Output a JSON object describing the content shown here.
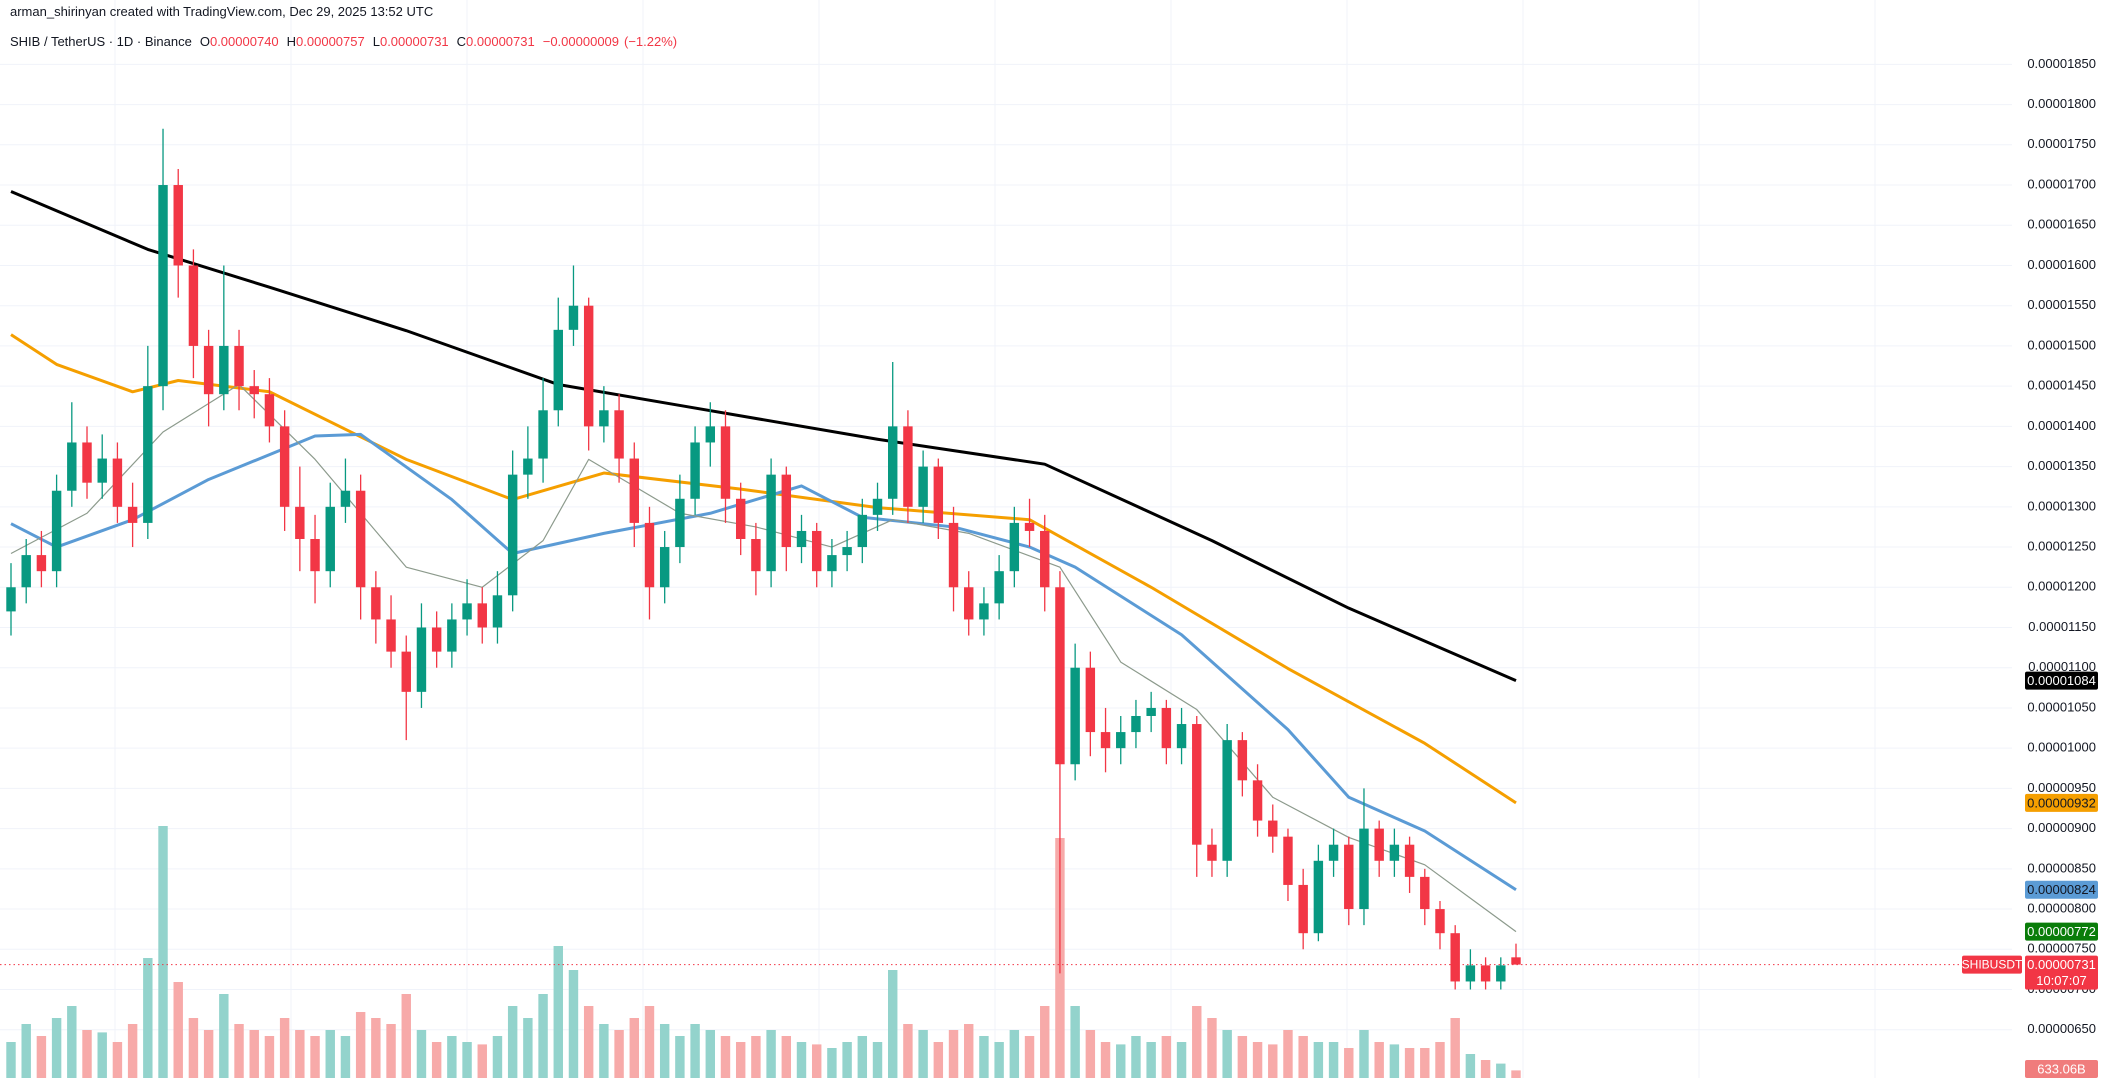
{
  "chart_data": {
    "type": "candlestick",
    "author": "arman_shirinyan created with TradingView.com, Dec 29, 2025 13:52 UTC",
    "symbol": "SHIB / TetherUS · 1D · Binance",
    "legend": [
      {
        "key": "O",
        "value": 7.4e-06,
        "label": "0.00000740"
      },
      {
        "key": "H",
        "value": 7.57e-06,
        "label": "0.00000757"
      },
      {
        "key": "L",
        "value": 7.31e-06,
        "label": "0.00000731"
      },
      {
        "key": "C",
        "value": 7.31e-06,
        "label": "0.00000731"
      }
    ],
    "change": [
      {
        "value": -9e-08,
        "label": "−0.00000009"
      },
      {
        "value": -1.22,
        "label": "(−1.22%)"
      }
    ],
    "up_color": "#089981",
    "down_color": "#f23645",
    "up_volume_color": "#93d3cc",
    "down_volume_color": "#f7aaa9",
    "open": [
      1.17e-05,
      1.2e-05,
      1.24e-05,
      1.22e-05,
      1.32e-05,
      1.38e-05,
      1.33e-05,
      1.36e-05,
      1.3e-05,
      1.28e-05,
      1.45e-05,
      1.7e-05,
      1.6e-05,
      1.5e-05,
      1.44e-05,
      1.5e-05,
      1.45e-05,
      1.44e-05,
      1.4e-05,
      1.3e-05,
      1.26e-05,
      1.22e-05,
      1.3e-05,
      1.32e-05,
      1.2e-05,
      1.16e-05,
      1.12e-05,
      1.07e-05,
      1.15e-05,
      1.12e-05,
      1.16e-05,
      1.18e-05,
      1.15e-05,
      1.19e-05,
      1.34e-05,
      1.36e-05,
      1.42e-05,
      1.52e-05,
      1.55e-05,
      1.4e-05,
      1.42e-05,
      1.36e-05,
      1.28e-05,
      1.2e-05,
      1.25e-05,
      1.31e-05,
      1.38e-05,
      1.4e-05,
      1.31e-05,
      1.26e-05,
      1.22e-05,
      1.34e-05,
      1.25e-05,
      1.27e-05,
      1.22e-05,
      1.24e-05,
      1.25e-05,
      1.29e-05,
      1.31e-05,
      1.4e-05,
      1.3e-05,
      1.35e-05,
      1.28e-05,
      1.2e-05,
      1.16e-05,
      1.18e-05,
      1.22e-05,
      1.28e-05,
      1.27e-05,
      1.2e-05,
      9.8e-06,
      1.1e-05,
      1.02e-05,
      1e-05,
      1.02e-05,
      1.04e-05,
      1.05e-05,
      1e-05,
      1.03e-05,
      8.8e-06,
      8.6e-06,
      1.01e-05,
      9.6e-06,
      9.1e-06,
      8.9e-06,
      8.3e-06,
      7.7e-06,
      8.6e-06,
      8.8e-06,
      8e-06,
      9e-06,
      8.6e-06,
      8.8e-06,
      8.4e-06,
      8e-06,
      7.7e-06,
      7.1e-06,
      7.3e-06,
      7.1e-06,
      7.4e-06
    ],
    "high": [
      1.23e-05,
      1.26e-05,
      1.27e-05,
      1.34e-05,
      1.43e-05,
      1.4e-05,
      1.39e-05,
      1.38e-05,
      1.33e-05,
      1.5e-05,
      1.77e-05,
      1.72e-05,
      1.62e-05,
      1.52e-05,
      1.6e-05,
      1.52e-05,
      1.47e-05,
      1.46e-05,
      1.42e-05,
      1.35e-05,
      1.29e-05,
      1.33e-05,
      1.36e-05,
      1.34e-05,
      1.22e-05,
      1.19e-05,
      1.14e-05,
      1.18e-05,
      1.17e-05,
      1.18e-05,
      1.21e-05,
      1.2e-05,
      1.22e-05,
      1.37e-05,
      1.4e-05,
      1.46e-05,
      1.56e-05,
      1.6e-05,
      1.56e-05,
      1.45e-05,
      1.44e-05,
      1.38e-05,
      1.3e-05,
      1.27e-05,
      1.34e-05,
      1.4e-05,
      1.43e-05,
      1.42e-05,
      1.33e-05,
      1.28e-05,
      1.36e-05,
      1.35e-05,
      1.29e-05,
      1.28e-05,
      1.26e-05,
      1.27e-05,
      1.31e-05,
      1.33e-05,
      1.48e-05,
      1.42e-05,
      1.37e-05,
      1.36e-05,
      1.3e-05,
      1.22e-05,
      1.2e-05,
      1.24e-05,
      1.3e-05,
      1.31e-05,
      1.29e-05,
      1.22e-05,
      1.13e-05,
      1.12e-05,
      1.05e-05,
      1.04e-05,
      1.06e-05,
      1.07e-05,
      1.06e-05,
      1.05e-05,
      1.04e-05,
      9e-06,
      1.03e-05,
      1.02e-05,
      9.8e-06,
      9.3e-06,
      9e-06,
      8.5e-06,
      8.8e-06,
      9e-06,
      8.9e-06,
      9.5e-06,
      9.1e-06,
      9e-06,
      8.9e-06,
      8.5e-06,
      8.1e-06,
      7.8e-06,
      7.5e-06,
      7.4e-06,
      7.4e-06,
      7.57e-06
    ],
    "low": [
      1.14e-05,
      1.18e-05,
      1.2e-05,
      1.2e-05,
      1.3e-05,
      1.31e-05,
      1.31e-05,
      1.28e-05,
      1.25e-05,
      1.26e-05,
      1.42e-05,
      1.56e-05,
      1.46e-05,
      1.4e-05,
      1.42e-05,
      1.42e-05,
      1.41e-05,
      1.38e-05,
      1.27e-05,
      1.22e-05,
      1.18e-05,
      1.2e-05,
      1.28e-05,
      1.16e-05,
      1.13e-05,
      1.1e-05,
      1.01e-05,
      1.05e-05,
      1.1e-05,
      1.1e-05,
      1.14e-05,
      1.13e-05,
      1.13e-05,
      1.17e-05,
      1.31e-05,
      1.33e-05,
      1.4e-05,
      1.5e-05,
      1.37e-05,
      1.38e-05,
      1.33e-05,
      1.25e-05,
      1.16e-05,
      1.18e-05,
      1.23e-05,
      1.29e-05,
      1.35e-05,
      1.28e-05,
      1.24e-05,
      1.19e-05,
      1.2e-05,
      1.22e-05,
      1.23e-05,
      1.2e-05,
      1.2e-05,
      1.22e-05,
      1.23e-05,
      1.27e-05,
      1.29e-05,
      1.28e-05,
      1.28e-05,
      1.26e-05,
      1.17e-05,
      1.14e-05,
      1.14e-05,
      1.16e-05,
      1.2e-05,
      1.25e-05,
      1.17e-05,
      7.2e-06,
      9.6e-06,
      9.9e-06,
      9.7e-06,
      9.8e-06,
      1e-05,
      1.02e-05,
      9.8e-06,
      9.8e-06,
      8.4e-06,
      8.4e-06,
      8.4e-06,
      9.4e-06,
      8.9e-06,
      8.7e-06,
      8.1e-06,
      7.5e-06,
      7.6e-06,
      8.4e-06,
      7.8e-06,
      7.8e-06,
      8.4e-06,
      8.4e-06,
      8.2e-06,
      7.8e-06,
      7.5e-06,
      7e-06,
      7e-06,
      7e-06,
      7e-06,
      7.31e-06
    ],
    "close": [
      1.2e-05,
      1.24e-05,
      1.22e-05,
      1.32e-05,
      1.38e-05,
      1.33e-05,
      1.36e-05,
      1.3e-05,
      1.28e-05,
      1.45e-05,
      1.7e-05,
      1.6e-05,
      1.5e-05,
      1.44e-05,
      1.5e-05,
      1.45e-05,
      1.44e-05,
      1.4e-05,
      1.3e-05,
      1.26e-05,
      1.22e-05,
      1.3e-05,
      1.32e-05,
      1.2e-05,
      1.16e-05,
      1.12e-05,
      1.07e-05,
      1.15e-05,
      1.12e-05,
      1.16e-05,
      1.18e-05,
      1.15e-05,
      1.19e-05,
      1.34e-05,
      1.36e-05,
      1.42e-05,
      1.52e-05,
      1.55e-05,
      1.4e-05,
      1.42e-05,
      1.36e-05,
      1.28e-05,
      1.2e-05,
      1.25e-05,
      1.31e-05,
      1.38e-05,
      1.4e-05,
      1.31e-05,
      1.26e-05,
      1.22e-05,
      1.34e-05,
      1.25e-05,
      1.27e-05,
      1.22e-05,
      1.24e-05,
      1.25e-05,
      1.29e-05,
      1.31e-05,
      1.4e-05,
      1.3e-05,
      1.35e-05,
      1.28e-05,
      1.2e-05,
      1.16e-05,
      1.18e-05,
      1.22e-05,
      1.28e-05,
      1.27e-05,
      1.2e-05,
      9.8e-06,
      1.1e-05,
      1.02e-05,
      1e-05,
      1.02e-05,
      1.04e-05,
      1.05e-05,
      1e-05,
      1.03e-05,
      8.8e-06,
      8.6e-06,
      1.01e-05,
      9.6e-06,
      9.1e-06,
      8.9e-06,
      8.3e-06,
      7.7e-06,
      8.6e-06,
      8.8e-06,
      8e-06,
      9e-06,
      8.6e-06,
      8.8e-06,
      8.4e-06,
      8e-06,
      7.7e-06,
      7.1e-06,
      7.3e-06,
      7.1e-06,
      7.3e-06,
      7.31e-06
    ],
    "volumes": [
      3000,
      4500,
      3500,
      5000,
      6000,
      4000,
      3800,
      3000,
      4500,
      10000,
      21000,
      8000,
      5000,
      4000,
      7000,
      4500,
      4000,
      3500,
      5000,
      4000,
      3500,
      4000,
      3500,
      5500,
      5000,
      4500,
      7000,
      4000,
      3000,
      3500,
      3000,
      2800,
      3500,
      6000,
      5000,
      7000,
      11000,
      9000,
      6000,
      4500,
      4000,
      5000,
      6000,
      4500,
      3500,
      4500,
      4000,
      3500,
      3000,
      3500,
      4000,
      3500,
      3000,
      2800,
      2500,
      3000,
      3500,
      3000,
      9000,
      4500,
      4000,
      3000,
      4000,
      4500,
      3500,
      3000,
      4000,
      3500,
      6000,
      20000,
      6000,
      4000,
      3000,
      2800,
      3500,
      3000,
      3500,
      3000,
      6000,
      5000,
      4000,
      3500,
      3000,
      2800,
      4000,
      3500,
      3000,
      3000,
      2500,
      4000,
      3000,
      2800,
      2500,
      2500,
      3000,
      5000,
      2000,
      1500,
      1200,
      633.06
    ],
    "vlim": [
      0,
      25000
    ],
    "moving_averages": [
      {
        "color": "#000000",
        "width": 3,
        "x": [
          0,
          9,
          17,
          26,
          36,
          44,
          57,
          68,
          79,
          88,
          99
        ],
        "values": [
          1.692e-05,
          1.62e-05,
          1.573e-05,
          1.519e-05,
          1.452e-05,
          1.426e-05,
          1.384e-05,
          1.353e-05,
          1.258e-05,
          1.174e-05,
          1.084e-05
        ]
      },
      {
        "color": "#f59f00",
        "width": 3,
        "x": [
          0,
          3,
          8,
          11,
          17,
          26,
          33,
          39,
          48,
          57,
          67,
          75,
          84,
          93,
          99
        ],
        "values": [
          1.514e-05,
          1.477e-05,
          1.443e-05,
          1.457e-05,
          1.443e-05,
          1.359e-05,
          1.309e-05,
          1.342e-05,
          1.322e-05,
          1.299e-05,
          1.284e-05,
          1.2e-05,
          1.099e-05,
          1.006e-05,
          9.32e-06
        ]
      },
      {
        "color": "#5b9bd5",
        "width": 3,
        "x": [
          0,
          3,
          8,
          13,
          20,
          23,
          29,
          33,
          39,
          46,
          52,
          56,
          62,
          67,
          70,
          77,
          84,
          88,
          93,
          99
        ],
        "values": [
          1.279e-05,
          1.25e-05,
          1.284e-05,
          1.334e-05,
          1.388e-05,
          1.39e-05,
          1.309e-05,
          1.242e-05,
          1.267e-05,
          1.292e-05,
          1.326e-05,
          1.287e-05,
          1.275e-05,
          1.25e-05,
          1.225e-05,
          1.141e-05,
          1.023e-05,
          9.39e-06,
          8.97e-06,
          8.24e-06
        ]
      },
      {
        "color": "#8c9a8c",
        "width": 1.2,
        "x": [
          0,
          5,
          10,
          15,
          20,
          26,
          31,
          35,
          38,
          44,
          49,
          54,
          58,
          63,
          69,
          73,
          78,
          83,
          88,
          93,
          99
        ],
        "values": [
          1.242e-05,
          1.292e-05,
          1.393e-05,
          1.452e-05,
          1.359e-05,
          1.225e-05,
          1.2e-05,
          1.258e-05,
          1.359e-05,
          1.292e-05,
          1.275e-05,
          1.25e-05,
          1.284e-05,
          1.267e-05,
          1.225e-05,
          1.107e-05,
          1.048e-05,
          9.39e-06,
          8.89e-06,
          8.55e-06,
          7.72e-06
        ]
      }
    ],
    "ylim": [
      5.9e-06,
      1.93e-05
    ],
    "yticks": [
      {
        "value": 6.5e-06,
        "label": "0.00000650"
      },
      {
        "value": 7e-06,
        "label": "0.00000700"
      },
      {
        "value": 7.5e-06,
        "label": "0.00000750"
      },
      {
        "value": 8e-06,
        "label": "0.00000800"
      },
      {
        "value": 8.5e-06,
        "label": "0.00000850"
      },
      {
        "value": 9e-06,
        "label": "0.00000900"
      },
      {
        "value": 9.5e-06,
        "label": "0.00000950"
      },
      {
        "value": 1e-05,
        "label": "0.00001000"
      },
      {
        "value": 1.05e-05,
        "label": "0.00001050"
      },
      {
        "value": 1.1e-05,
        "label": "0.00001100"
      },
      {
        "value": 1.15e-05,
        "label": "0.00001150"
      },
      {
        "value": 1.2e-05,
        "label": "0.00001200"
      },
      {
        "value": 1.25e-05,
        "label": "0.00001250"
      },
      {
        "value": 1.3e-05,
        "label": "0.00001300"
      },
      {
        "value": 1.35e-05,
        "label": "0.00001350"
      },
      {
        "value": 1.4e-05,
        "label": "0.00001400"
      },
      {
        "value": 1.45e-05,
        "label": "0.00001450"
      },
      {
        "value": 1.5e-05,
        "label": "0.00001500"
      },
      {
        "value": 1.55e-05,
        "label": "0.00001550"
      },
      {
        "value": 1.6e-05,
        "label": "0.00001600"
      },
      {
        "value": 1.65e-05,
        "label": "0.00001650"
      },
      {
        "value": 1.7e-05,
        "label": "0.00001700"
      },
      {
        "value": 1.75e-05,
        "label": "0.00001750"
      },
      {
        "value": 1.8e-05,
        "label": "0.00001800"
      },
      {
        "value": 1.85e-05,
        "label": "0.00001850"
      }
    ],
    "grid": true,
    "price_labels": [
      {
        "value": 1.084e-05,
        "label": "0.00001084",
        "color": "#000000",
        "text_color": "#ffffff"
      },
      {
        "value": 9.32e-06,
        "label": "0.00000932",
        "color": "#f59f00",
        "text_color": "#131722"
      },
      {
        "value": 8.24e-06,
        "label": "0.00000824",
        "color": "#5b9bd5",
        "text_color": "#131722"
      },
      {
        "value": 7.72e-06,
        "label": "0.00000772",
        "color": "#0a7d0a",
        "text_color": "#ffffff"
      }
    ],
    "last": {
      "symbol": "SHIBUSDT",
      "value": 7.31e-06,
      "label": "0.00000731",
      "countdown": "10:07:07",
      "color": "#f23645"
    },
    "last_volume": {
      "value": 633.06,
      "label": "633.06B",
      "color": "#f07c7c"
    }
  }
}
